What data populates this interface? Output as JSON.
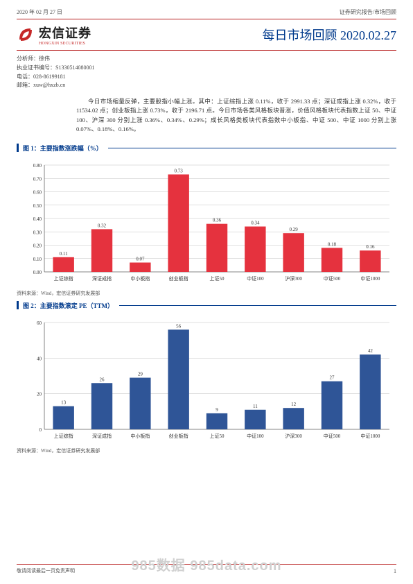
{
  "header": {
    "date": "2020 年 02 月 27 日",
    "doc_type": "证券研究报告/市场回顾"
  },
  "brand": {
    "cn": "宏信证券",
    "en": "HONGXIN SECURITIES",
    "icon_color": "#c62828"
  },
  "title": "每日市场回顾 2020.02.27",
  "analyst": {
    "line1": "分析师：徐伟",
    "line2": "执业证书编号：S1330514080001",
    "line3": "电话：028-86199181",
    "line4": "邮箱：xuw@hxzb.cn"
  },
  "summary": "今日市场缩量反弹，主要股指小幅上涨。其中：上证综指上涨 0.11%，收于 2991.33 点；深证成指上涨 0.32%，收于 11534.02 点；创业板指上涨 0.73%，收于 2196.71 点。今日市场各类风格板块普涨，价值风格板块代表指数上证 50、中证 100、沪深 300 分别上涨 0.36%、0.34%、0.29%；成长风格类板块代表指数中小板指、中证 500、中证 1000 分别上涨 0.07%、0.18%、0.16%。",
  "fig1": {
    "title": "图 1：主要指数涨跌幅（%）",
    "type": "bar",
    "categories": [
      "上证综指",
      "深证成指",
      "中小板指",
      "创业板指",
      "上证50",
      "中证100",
      "沪深300",
      "中证500",
      "中证1000"
    ],
    "values": [
      0.11,
      0.32,
      0.07,
      0.73,
      0.36,
      0.34,
      0.29,
      0.18,
      0.16
    ],
    "bar_color": "#e5323e",
    "ymin": 0.0,
    "ymax": 0.8,
    "ytick_step": 0.1,
    "grid_color": "#bfbfbf",
    "bar_width_ratio": 0.55,
    "label_fontsize": 7,
    "value_format": "0.00",
    "source": "资料来源：Wind，宏信证券研究发展部"
  },
  "fig2": {
    "title": "图 2：主要指数滚定 PE（TTM）",
    "type": "bar",
    "categories": [
      "上证综指",
      "深证成指",
      "中小板指",
      "创业板指",
      "上证50",
      "中证100",
      "沪深300",
      "中证500",
      "中证1000"
    ],
    "values": [
      13,
      26,
      29,
      56,
      9,
      11,
      12,
      27,
      42
    ],
    "bar_color": "#2f5597",
    "ymin": 0,
    "ymax": 60,
    "ytick_step": 20,
    "grid_color": "#bfbfbf",
    "bar_width_ratio": 0.55,
    "label_fontsize": 7,
    "value_format": "0",
    "source": "资料来源：Wind，宏信证券研究发展部"
  },
  "footer": {
    "left": "敬请阅读最后一页免责声明",
    "watermark": "985数据  985data.com",
    "page": "1"
  },
  "colors": {
    "title_text": "#003a8c",
    "rule": "#b71c1c"
  }
}
